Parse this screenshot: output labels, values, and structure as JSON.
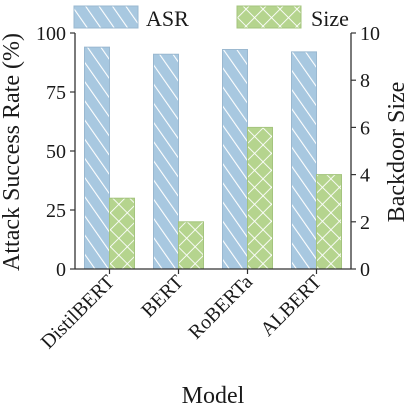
{
  "chart_data": {
    "type": "bar",
    "title": "",
    "xlabel": "Model",
    "ylabel_left": "Attack Success Rate (%)",
    "ylabel_right": "Backdoor Size",
    "categories": [
      "DistilBERT",
      "BERT",
      "RoBERTa",
      "ALBERT"
    ],
    "series": [
      {
        "name": "ASR",
        "axis": "left",
        "values": [
          94,
          91,
          93,
          92
        ],
        "color": "#a8c8e0",
        "pattern": "diagonal-hatch"
      },
      {
        "name": "Size",
        "axis": "right",
        "values": [
          3,
          2,
          6,
          4
        ],
        "color": "#b5d48e",
        "pattern": "cross-hatch"
      }
    ],
    "ylim_left": [
      0,
      100
    ],
    "ylim_right": [
      0,
      10
    ],
    "yticks_left": [
      "0",
      "25",
      "50",
      "75",
      "100"
    ],
    "yticks_right": [
      "0",
      "2",
      "4",
      "6",
      "8",
      "10"
    ],
    "grid": false,
    "legend_position": "top"
  }
}
